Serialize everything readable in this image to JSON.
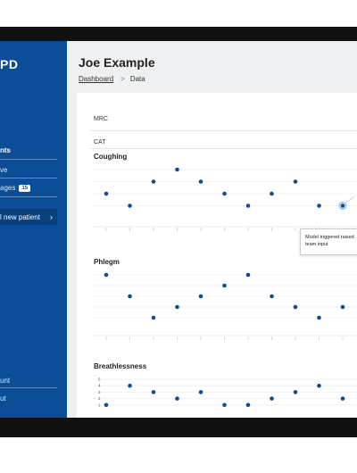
{
  "sidebar": {
    "logo": "PD",
    "heading": "nts",
    "items": [
      {
        "label": "ve"
      },
      {
        "label": "ages",
        "badge": "15"
      }
    ],
    "add_button": {
      "label": "l new patient",
      "icon": "chevron-right-icon"
    },
    "footer": [
      {
        "label": "unt"
      },
      {
        "label": "ut"
      }
    ]
  },
  "header": {
    "title": "Joe Example",
    "breadcrumb": {
      "link": "Dashboard",
      "separator": ">",
      "current": "Data"
    }
  },
  "rows": [
    {
      "label": "MRC"
    },
    {
      "label": "CAT"
    }
  ],
  "sections": [
    {
      "title": "Coughing"
    },
    {
      "title": "Phlegm"
    },
    {
      "title": "Breathlessness"
    }
  ],
  "tooltip": {
    "text": "Model triggered raised team input"
  },
  "breathlessness_ticks": [
    "5",
    "4",
    "3",
    "2",
    "1"
  ],
  "colors": {
    "sidebar": "#0b4d96",
    "point": "#0b4d96",
    "background": "#eef0f2"
  },
  "chart_data": [
    {
      "type": "scatter",
      "title": "Coughing",
      "x": [
        1,
        2,
        3,
        4,
        5,
        6,
        7,
        8,
        9,
        10,
        11
      ],
      "y": [
        2,
        1,
        3,
        4,
        3,
        2,
        1,
        2,
        3,
        1,
        1
      ],
      "ylim": [
        0,
        4
      ],
      "highlight_index": 10
    },
    {
      "type": "scatter",
      "title": "Phlegm",
      "x": [
        1,
        2,
        3,
        4,
        5,
        6,
        7,
        8,
        9,
        10,
        11
      ],
      "y": [
        5,
        3,
        1,
        2,
        3,
        4,
        5,
        3,
        2,
        1,
        2
      ],
      "ylim": [
        0,
        5
      ]
    },
    {
      "type": "scatter",
      "title": "Breathlessness",
      "x": [
        1,
        2,
        3,
        4,
        5,
        6,
        7,
        8,
        9,
        10,
        11
      ],
      "y": [
        1,
        4,
        3,
        2,
        3,
        1,
        1,
        2,
        3,
        4,
        2
      ],
      "ylim": [
        0,
        5
      ]
    }
  ]
}
